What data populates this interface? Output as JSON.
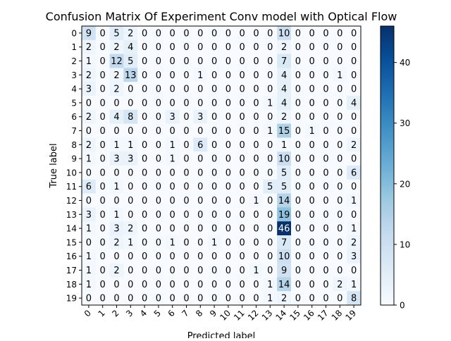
{
  "chart_data": {
    "type": "heatmap",
    "title": "Confusion Matrix Of Experiment Conv model with Optical Flow",
    "xlabel": "Predicted label",
    "ylabel": "True label",
    "x_categories": [
      "0",
      "1",
      "2",
      "3",
      "4",
      "5",
      "6",
      "7",
      "8",
      "9",
      "10",
      "11",
      "12",
      "13",
      "14",
      "15",
      "16",
      "17",
      "18",
      "19"
    ],
    "y_categories": [
      "0",
      "1",
      "2",
      "3",
      "4",
      "5",
      "6",
      "7",
      "8",
      "9",
      "10",
      "11",
      "12",
      "13",
      "14",
      "15",
      "16",
      "17",
      "18",
      "19"
    ],
    "matrix": [
      [
        9,
        0,
        5,
        2,
        0,
        0,
        0,
        0,
        0,
        0,
        0,
        0,
        0,
        0,
        10,
        0,
        0,
        0,
        0,
        0
      ],
      [
        2,
        0,
        2,
        4,
        0,
        0,
        0,
        0,
        0,
        0,
        0,
        0,
        0,
        0,
        2,
        0,
        0,
        0,
        0,
        0
      ],
      [
        1,
        0,
        12,
        5,
        0,
        0,
        0,
        0,
        0,
        0,
        0,
        0,
        0,
        0,
        7,
        0,
        0,
        0,
        0,
        0
      ],
      [
        2,
        0,
        2,
        13,
        0,
        0,
        0,
        0,
        1,
        0,
        0,
        0,
        0,
        0,
        4,
        0,
        0,
        0,
        1,
        0
      ],
      [
        3,
        0,
        2,
        0,
        0,
        0,
        0,
        0,
        0,
        0,
        0,
        0,
        0,
        0,
        4,
        0,
        0,
        0,
        0,
        0
      ],
      [
        0,
        0,
        0,
        0,
        0,
        0,
        0,
        0,
        0,
        0,
        0,
        0,
        0,
        1,
        4,
        0,
        0,
        0,
        0,
        4
      ],
      [
        2,
        0,
        4,
        8,
        0,
        0,
        3,
        0,
        3,
        0,
        0,
        0,
        0,
        0,
        2,
        0,
        0,
        0,
        0,
        0
      ],
      [
        0,
        0,
        0,
        0,
        0,
        0,
        0,
        0,
        0,
        0,
        0,
        0,
        0,
        1,
        15,
        0,
        1,
        0,
        0,
        0
      ],
      [
        2,
        0,
        1,
        1,
        0,
        0,
        1,
        0,
        6,
        0,
        0,
        0,
        0,
        0,
        1,
        0,
        0,
        0,
        0,
        2
      ],
      [
        1,
        0,
        3,
        3,
        0,
        0,
        1,
        0,
        0,
        0,
        0,
        0,
        0,
        0,
        10,
        0,
        0,
        0,
        0,
        0
      ],
      [
        0,
        0,
        0,
        0,
        0,
        0,
        0,
        0,
        0,
        0,
        0,
        0,
        0,
        0,
        5,
        0,
        0,
        0,
        0,
        6
      ],
      [
        6,
        0,
        1,
        0,
        0,
        0,
        0,
        0,
        0,
        0,
        0,
        0,
        0,
        5,
        5,
        0,
        0,
        0,
        0,
        0
      ],
      [
        0,
        0,
        0,
        0,
        0,
        0,
        0,
        0,
        0,
        0,
        0,
        0,
        1,
        0,
        14,
        0,
        0,
        0,
        0,
        1
      ],
      [
        3,
        0,
        1,
        0,
        0,
        0,
        0,
        0,
        0,
        0,
        0,
        0,
        0,
        0,
        19,
        0,
        0,
        0,
        0,
        0
      ],
      [
        1,
        0,
        3,
        2,
        0,
        0,
        0,
        0,
        0,
        0,
        0,
        0,
        0,
        0,
        46,
        0,
        0,
        0,
        0,
        1
      ],
      [
        0,
        0,
        2,
        1,
        0,
        0,
        1,
        0,
        0,
        1,
        0,
        0,
        0,
        0,
        7,
        0,
        0,
        0,
        0,
        2
      ],
      [
        1,
        0,
        0,
        0,
        0,
        0,
        0,
        0,
        0,
        0,
        0,
        0,
        0,
        0,
        10,
        0,
        0,
        0,
        0,
        3
      ],
      [
        1,
        0,
        2,
        0,
        0,
        0,
        0,
        0,
        0,
        0,
        0,
        0,
        1,
        0,
        9,
        0,
        0,
        0,
        0,
        0
      ],
      [
        1,
        0,
        0,
        0,
        0,
        0,
        0,
        0,
        0,
        0,
        0,
        0,
        0,
        1,
        14,
        0,
        0,
        0,
        2,
        1
      ],
      [
        0,
        0,
        0,
        0,
        0,
        0,
        0,
        0,
        0,
        0,
        0,
        0,
        0,
        1,
        2,
        0,
        0,
        0,
        0,
        8
      ]
    ],
    "colormap": "Blues",
    "value_range": [
      0,
      46
    ],
    "colorbar_ticks": [
      0,
      10,
      20,
      30,
      40
    ],
    "grid": false,
    "legend": "colorbar-right"
  }
}
